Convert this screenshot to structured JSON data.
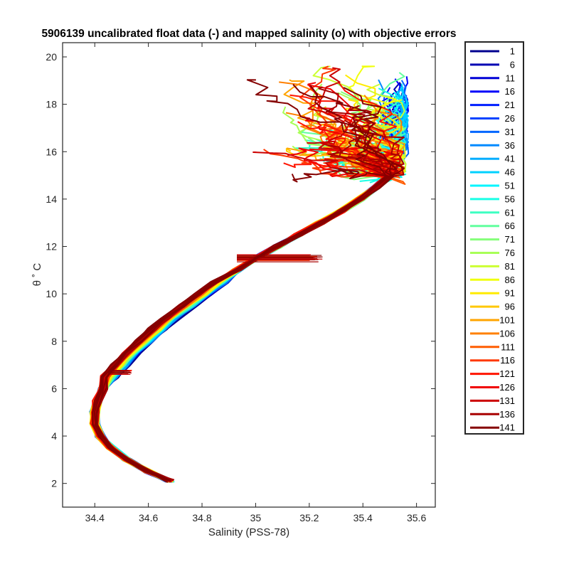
{
  "chart_data": {
    "type": "line",
    "title": "5906139 uncalibrated float data (-) and mapped salinity (o) with objective errors",
    "xlabel": "Salinity (PSS-78)",
    "ylabel": "θ ˚ C",
    "xlim": [
      34.28,
      35.67
    ],
    "ylim": [
      1.0,
      20.6
    ],
    "x_ticks": [
      34.4,
      34.6,
      34.8,
      35,
      35.2,
      35.4,
      35.6
    ],
    "x_tick_labels": [
      "34.4",
      "34.6",
      "34.8",
      "35",
      "35.2",
      "35.4",
      "35.6"
    ],
    "y_ticks": [
      2,
      4,
      6,
      8,
      10,
      12,
      14,
      16,
      18,
      20
    ],
    "y_tick_labels": [
      "2",
      "4",
      "6",
      "8",
      "10",
      "12",
      "14",
      "16",
      "18",
      "20"
    ],
    "grid": false,
    "legend_position": "outside-right",
    "colormap": "jet",
    "legend_entries": [
      "1",
      "6",
      "11",
      "16",
      "21",
      "26",
      "31",
      "36",
      "41",
      "46",
      "51",
      "56",
      "61",
      "66",
      "71",
      "76",
      "81",
      "86",
      "91",
      "96",
      "101",
      "106",
      "111",
      "116",
      "121",
      "126",
      "131",
      "136",
      "141"
    ],
    "legend_colors": [
      "#00008f",
      "#0000b3",
      "#0000d6",
      "#0000fa",
      "#001eff",
      "#0042ff",
      "#0066ff",
      "#008aff",
      "#00adff",
      "#00d1ff",
      "#00f5ff",
      "#19ffe6",
      "#3dffc2",
      "#61ff9e",
      "#85ff7a",
      "#a8ff57",
      "#ccff33",
      "#f0ff0f",
      "#ffeb00",
      "#ffc800",
      "#ffa400",
      "#ff8000",
      "#ff5c00",
      "#ff3800",
      "#ff1400",
      "#f00000",
      "#cc0000",
      "#a80000",
      "#850000"
    ],
    "base_profile": [
      {
        "t": 2.1,
        "s": 34.68
      },
      {
        "t": 2.5,
        "s": 34.6
      },
      {
        "t": 3.0,
        "s": 34.52
      },
      {
        "t": 3.5,
        "s": 34.46
      },
      {
        "t": 4.0,
        "s": 34.42
      },
      {
        "t": 4.5,
        "s": 34.4
      },
      {
        "t": 5.0,
        "s": 34.4
      },
      {
        "t": 5.5,
        "s": 34.41
      },
      {
        "t": 6.0,
        "s": 34.43
      },
      {
        "t": 6.5,
        "s": 34.46
      },
      {
        "t": 7.0,
        "s": 34.5
      },
      {
        "t": 7.5,
        "s": 34.54
      },
      {
        "t": 8.0,
        "s": 34.59
      },
      {
        "t": 8.5,
        "s": 34.64
      },
      {
        "t": 9.0,
        "s": 34.69
      },
      {
        "t": 9.5,
        "s": 34.75
      },
      {
        "t": 10.0,
        "s": 34.81
      },
      {
        "t": 10.5,
        "s": 34.87
      },
      {
        "t": 11.0,
        "s": 34.93
      },
      {
        "t": 11.5,
        "s": 35.0
      },
      {
        "t": 12.0,
        "s": 35.08
      },
      {
        "t": 12.5,
        "s": 35.16
      },
      {
        "t": 13.0,
        "s": 35.24
      },
      {
        "t": 13.5,
        "s": 35.32
      },
      {
        "t": 14.0,
        "s": 35.39
      },
      {
        "t": 14.5,
        "s": 35.45
      },
      {
        "t": 15.0,
        "s": 35.5
      }
    ],
    "profile_step": 5,
    "profile_count": 29
  }
}
